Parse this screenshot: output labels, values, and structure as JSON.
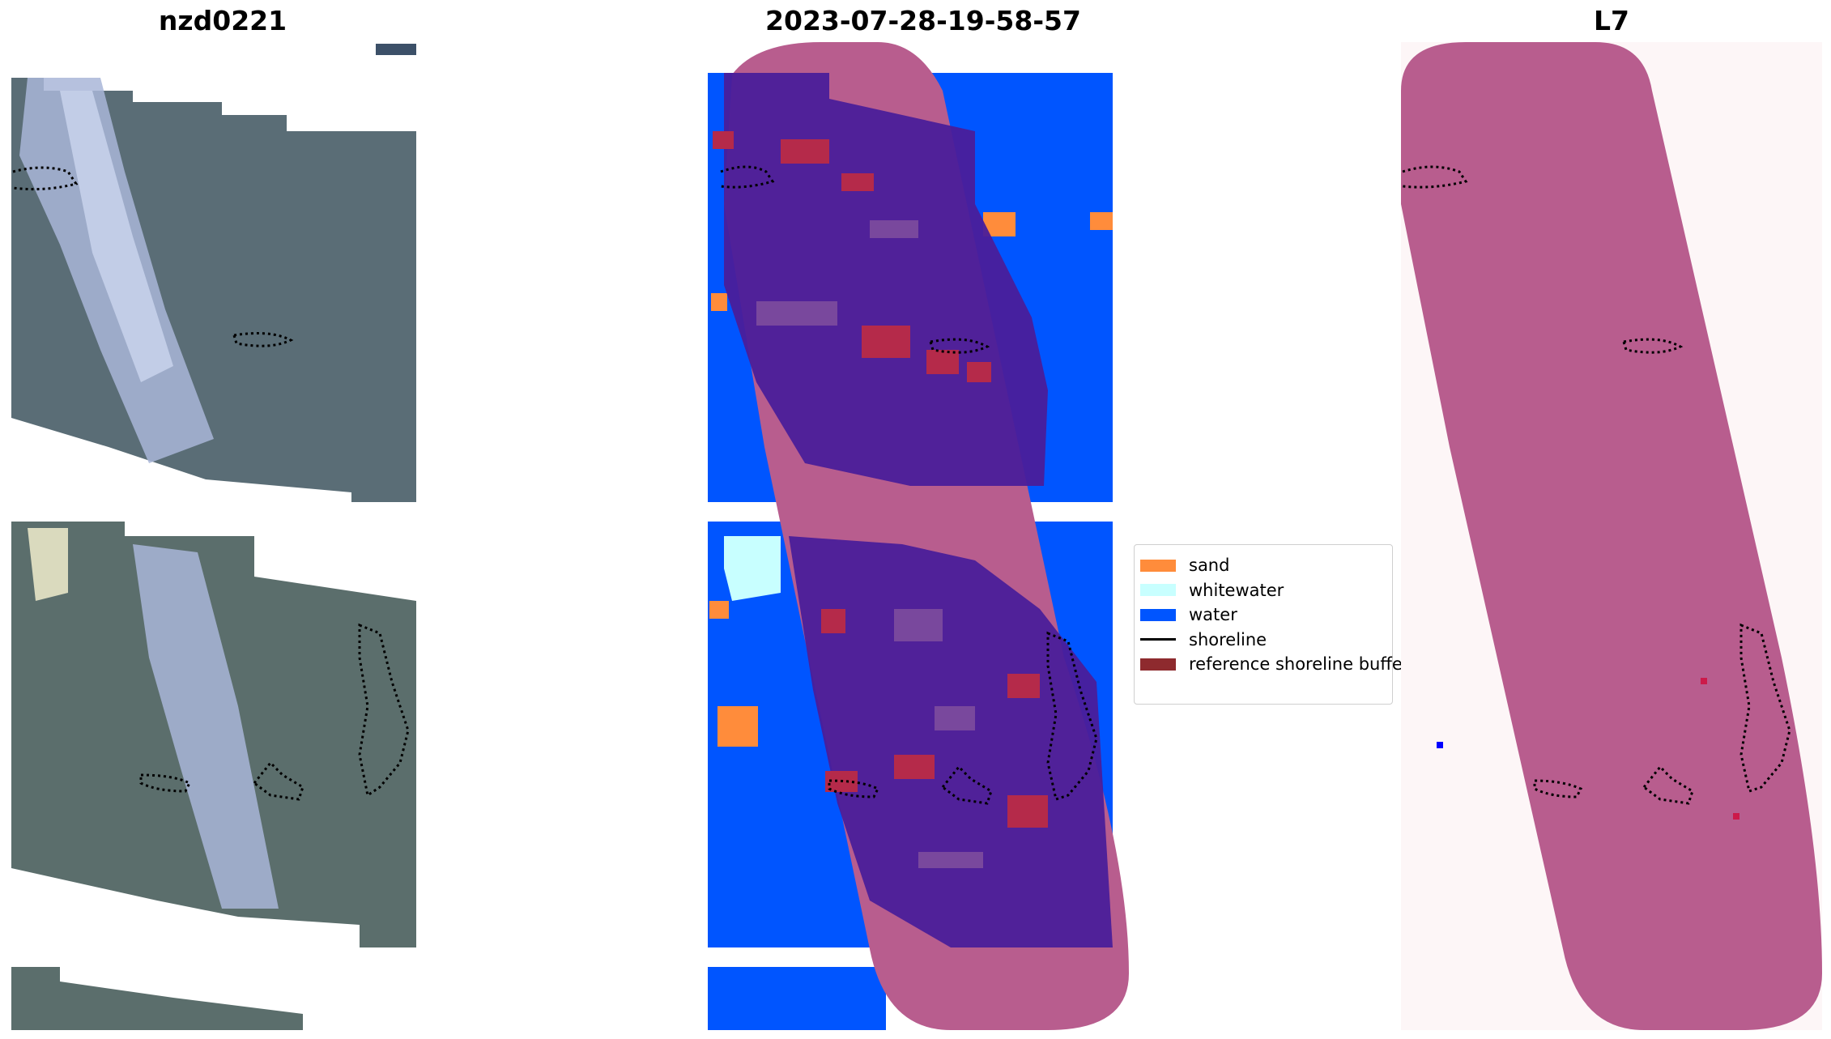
{
  "panels": {
    "left": {
      "title": "nzd0221"
    },
    "middle": {
      "title": "2023-07-28-19-58-57"
    },
    "right": {
      "title": "L7"
    }
  },
  "legend": {
    "items": [
      {
        "label": "sand",
        "color": "#ff8c3b",
        "kind": "patch"
      },
      {
        "label": "whitewater",
        "color": "#c8ffff",
        "kind": "patch"
      },
      {
        "label": "water",
        "color": "#0055ff",
        "kind": "patch"
      },
      {
        "label": "shoreline",
        "color": "#000000",
        "kind": "line"
      },
      {
        "label": "reference shoreline buffe",
        "color": "#8e2a2e",
        "kind": "patch"
      }
    ]
  },
  "colors": {
    "buffer": "#b85d8e",
    "classified_overlay": "#4a1e9a",
    "water": "#0055ff",
    "sand": "#ff8c3b",
    "imagery": "#5a6f7a",
    "surf": "#b9c8e6"
  }
}
